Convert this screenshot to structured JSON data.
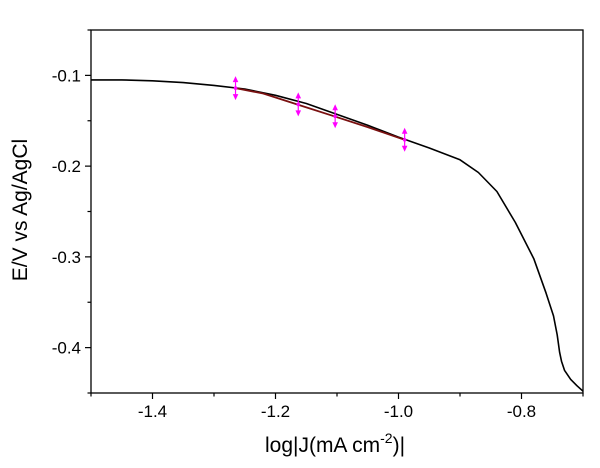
{
  "chart_data": {
    "type": "line",
    "xlabel": "log|J(mA cm",
    "xlabel_sup": "-2",
    "xlabel_tail": ")|",
    "ylabel": "E/V vs Ag/AgCl",
    "xlim": [
      -1.5,
      -0.7
    ],
    "ylim": [
      -0.45,
      -0.05
    ],
    "x_ticks": [
      -1.4,
      -1.2,
      -1.0,
      -0.8
    ],
    "x_tick_labels": [
      "-1.4",
      "-1.2",
      "-1.0",
      "-0.8"
    ],
    "y_ticks": [
      -0.1,
      -0.2,
      -0.3,
      -0.4
    ],
    "y_tick_labels": [
      "-0.1",
      "-0.2",
      "-0.3",
      "-0.4"
    ],
    "grid": false,
    "series": [
      {
        "color": "#000000",
        "x": [
          -1.5,
          -1.45,
          -1.4,
          -1.35,
          -1.3,
          -1.25,
          -1.2,
          -1.15,
          -1.1,
          -1.05,
          -1.0,
          -0.95,
          -0.9,
          -0.87,
          -0.84,
          -0.81,
          -0.78,
          -0.76,
          -0.748,
          -0.742,
          -0.738,
          -0.735,
          -0.73,
          -0.72,
          -0.71,
          -0.7
        ],
        "y": [
          -0.105,
          -0.105,
          -0.106,
          -0.108,
          -0.111,
          -0.115,
          -0.122,
          -0.131,
          -0.143,
          -0.155,
          -0.168,
          -0.18,
          -0.193,
          -0.207,
          -0.228,
          -0.262,
          -0.302,
          -0.34,
          -0.365,
          -0.386,
          -0.405,
          -0.415,
          -0.425,
          -0.435,
          -0.442,
          -0.448
        ]
      },
      {
        "color": "#7a1010",
        "x": [
          -1.265,
          -1.22,
          -1.165,
          -1.105,
          -1.05,
          -0.99
        ],
        "y": [
          -0.114,
          -0.12,
          -0.132,
          -0.145,
          -0.157,
          -0.171
        ]
      }
    ],
    "markers": {
      "color": "#ff00ff",
      "points": [
        {
          "x": -1.265,
          "y": -0.114
        },
        {
          "x": -1.163,
          "y": -0.132
        },
        {
          "x": -1.103,
          "y": -0.145
        },
        {
          "x": -0.99,
          "y": -0.171
        }
      ]
    }
  }
}
